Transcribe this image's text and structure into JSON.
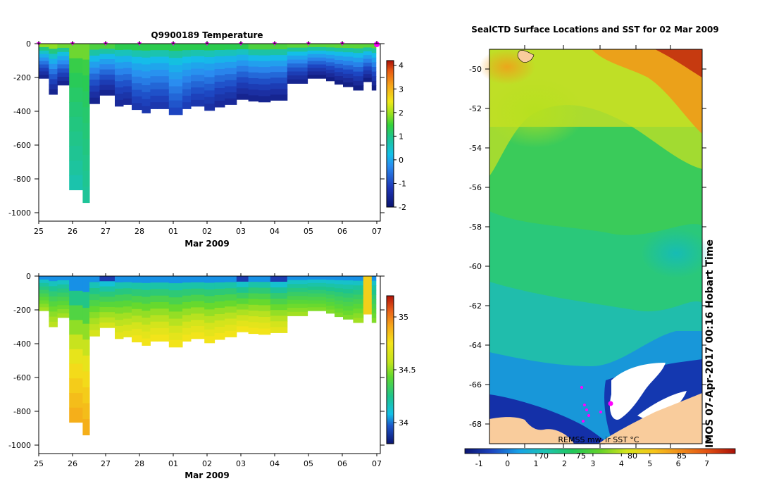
{
  "chart_data": [
    {
      "type": "heatmap",
      "title": "Q9900189  Temperature",
      "xlabel": "Mar 2009",
      "x_tick_labels": [
        "25",
        "26",
        "27",
        "28",
        "01",
        "02",
        "03",
        "04",
        "05",
        "06",
        "07"
      ],
      "y_tick_labels": [
        "0",
        "-200",
        "-400",
        "-600",
        "-800",
        "-1000"
      ],
      "ylim": [
        -1050,
        0
      ],
      "colorbar_ticks": [
        "4",
        "3",
        "2",
        "1",
        "0",
        "-1",
        "-2"
      ],
      "colorbar_range": [
        -2,
        4.2
      ],
      "profiles": [
        {
          "x": 0.0,
          "depth": 205,
          "surface": 1.6,
          "deep": -1.7
        },
        {
          "x": 0.3,
          "depth": 300,
          "surface": 1.6,
          "deep": -1.7
        },
        {
          "x": 0.55,
          "depth": 245,
          "surface": 1.4,
          "deep": -1.7
        },
        {
          "x": 0.9,
          "depth": 865,
          "surface": 1.4,
          "deep": 0.3
        },
        {
          "x": 1.3,
          "depth": 940,
          "surface": 1.4,
          "deep": 0.4
        },
        {
          "x": 1.5,
          "depth": 355,
          "surface": 1.2,
          "deep": -1.7
        },
        {
          "x": 1.8,
          "depth": 305,
          "surface": 1.2,
          "deep": -1.7
        },
        {
          "x": 2.25,
          "depth": 370,
          "surface": 1.0,
          "deep": -1.6
        },
        {
          "x": 2.5,
          "depth": 360,
          "surface": 1.0,
          "deep": -1.6
        },
        {
          "x": 2.75,
          "depth": 390,
          "surface": 1.0,
          "deep": -1.4
        },
        {
          "x": 3.05,
          "depth": 410,
          "surface": 1.0,
          "deep": -1.4
        },
        {
          "x": 3.3,
          "depth": 385,
          "surface": 1.0,
          "deep": -1.4
        },
        {
          "x": 3.5,
          "depth": 385,
          "surface": 1.0,
          "deep": -1.4
        },
        {
          "x": 3.85,
          "depth": 420,
          "surface": 1.0,
          "deep": -1.2
        },
        {
          "x": 4.25,
          "depth": 385,
          "surface": 1.0,
          "deep": -1.3
        },
        {
          "x": 4.5,
          "depth": 370,
          "surface": 1.0,
          "deep": -1.4
        },
        {
          "x": 4.9,
          "depth": 395,
          "surface": 1.0,
          "deep": -1.5
        },
        {
          "x": 5.2,
          "depth": 375,
          "surface": 1.0,
          "deep": -1.6
        },
        {
          "x": 5.5,
          "depth": 360,
          "surface": 1.0,
          "deep": -1.6
        },
        {
          "x": 5.85,
          "depth": 330,
          "surface": 1.0,
          "deep": -1.7
        },
        {
          "x": 6.2,
          "depth": 340,
          "surface": 1.2,
          "deep": -1.7
        },
        {
          "x": 6.5,
          "depth": 345,
          "surface": 1.2,
          "deep": -1.7
        },
        {
          "x": 6.85,
          "depth": 335,
          "surface": 1.2,
          "deep": -1.7
        },
        {
          "x": 7.35,
          "depth": 235,
          "surface": 1.3,
          "deep": -1.7
        },
        {
          "x": 7.95,
          "depth": 205,
          "surface": 1.3,
          "deep": -1.8
        },
        {
          "x": 8.5,
          "depth": 220,
          "surface": 1.3,
          "deep": -1.8
        },
        {
          "x": 8.75,
          "depth": 240,
          "surface": 1.3,
          "deep": -1.8
        },
        {
          "x": 9.0,
          "depth": 255,
          "surface": 1.3,
          "deep": -1.8
        },
        {
          "x": 9.3,
          "depth": 275,
          "surface": 1.3,
          "deep": -1.8
        },
        {
          "x": 9.6,
          "depth": 225,
          "surface": 1.3,
          "deep": -1.8
        },
        {
          "x": 9.85,
          "depth": 275,
          "surface": 1.3,
          "deep": -1.8
        }
      ]
    },
    {
      "type": "heatmap",
      "xlabel": "Mar 2009",
      "x_tick_labels": [
        "25",
        "26",
        "27",
        "28",
        "01",
        "02",
        "03",
        "04",
        "05",
        "06",
        "07"
      ],
      "y_tick_labels": [
        "0",
        "-200",
        "-400",
        "-600",
        "-800",
        "-1000"
      ],
      "ylim": [
        -1050,
        0
      ],
      "colorbar_ticks": [
        "35",
        "34.5",
        "34"
      ],
      "colorbar_range": [
        33.8,
        35.2
      ],
      "profiles": [
        {
          "x": 0.0,
          "depth": 205,
          "surface": 33.9,
          "deep": 34.5
        },
        {
          "x": 0.3,
          "depth": 300,
          "surface": 33.9,
          "deep": 34.55
        },
        {
          "x": 0.55,
          "depth": 245,
          "surface": 33.9,
          "deep": 34.5
        },
        {
          "x": 0.9,
          "depth": 865,
          "surface": 33.9,
          "deep": 34.95
        },
        {
          "x": 1.3,
          "depth": 940,
          "surface": 33.9,
          "deep": 34.95
        },
        {
          "x": 1.5,
          "depth": 355,
          "surface": 33.9,
          "deep": 34.6
        },
        {
          "x": 1.8,
          "depth": 305,
          "surface": 33.8,
          "deep": 34.6
        },
        {
          "x": 2.25,
          "depth": 370,
          "surface": 33.9,
          "deep": 34.65
        },
        {
          "x": 2.5,
          "depth": 360,
          "surface": 33.9,
          "deep": 34.65
        },
        {
          "x": 2.75,
          "depth": 390,
          "surface": 33.9,
          "deep": 34.7
        },
        {
          "x": 3.05,
          "depth": 410,
          "surface": 33.9,
          "deep": 34.7
        },
        {
          "x": 3.3,
          "depth": 385,
          "surface": 33.9,
          "deep": 34.7
        },
        {
          "x": 3.5,
          "depth": 385,
          "surface": 33.9,
          "deep": 34.7
        },
        {
          "x": 3.85,
          "depth": 420,
          "surface": 33.9,
          "deep": 34.7
        },
        {
          "x": 4.25,
          "depth": 385,
          "surface": 33.9,
          "deep": 34.7
        },
        {
          "x": 4.5,
          "depth": 370,
          "surface": 33.9,
          "deep": 34.7
        },
        {
          "x": 4.9,
          "depth": 395,
          "surface": 33.9,
          "deep": 34.7
        },
        {
          "x": 5.2,
          "depth": 375,
          "surface": 33.9,
          "deep": 34.7
        },
        {
          "x": 5.5,
          "depth": 360,
          "surface": 33.9,
          "deep": 34.7
        },
        {
          "x": 5.85,
          "depth": 330,
          "surface": 33.8,
          "deep": 34.7
        },
        {
          "x": 6.2,
          "depth": 340,
          "surface": 33.9,
          "deep": 34.7
        },
        {
          "x": 6.5,
          "depth": 345,
          "surface": 33.9,
          "deep": 34.7
        },
        {
          "x": 6.85,
          "depth": 335,
          "surface": 33.8,
          "deep": 34.65
        },
        {
          "x": 7.35,
          "depth": 235,
          "surface": 33.9,
          "deep": 34.5
        },
        {
          "x": 7.95,
          "depth": 205,
          "surface": 33.9,
          "deep": 34.45
        },
        {
          "x": 8.5,
          "depth": 220,
          "surface": 33.9,
          "deep": 34.45
        },
        {
          "x": 8.75,
          "depth": 240,
          "surface": 33.9,
          "deep": 34.45
        },
        {
          "x": 9.0,
          "depth": 255,
          "surface": 33.9,
          "deep": 34.45
        },
        {
          "x": 9.3,
          "depth": 275,
          "surface": 33.9,
          "deep": 34.5
        },
        {
          "x": 9.6,
          "depth": 225,
          "surface": 34.8,
          "deep": 34.8
        },
        {
          "x": 9.85,
          "depth": 275,
          "surface": 33.9,
          "deep": 34.45
        }
      ]
    },
    {
      "type": "heatmap",
      "title": "SealCTD Surface Locations and SST for 02 Mar 2009",
      "y_tick_labels": [
        "-50",
        "-52",
        "-54",
        "-56",
        "-58",
        "-60",
        "-62",
        "-64",
        "-66",
        "-68"
      ],
      "ylim": [
        -69,
        -49
      ],
      "colorbar_ticks": [
        "-1",
        "0",
        "1",
        "2",
        "3",
        "4",
        "5",
        "6",
        "7"
      ],
      "colorbar_range": [
        -1.5,
        8
      ],
      "colorbar_top_labels": [
        "70",
        "75",
        "80",
        "85"
      ],
      "product_label": "REMSS mw_ir SST °C",
      "side_label": "IMOS 07-Apr-2017 00:16 Hobart Time",
      "copyright_symbol": "©"
    }
  ]
}
